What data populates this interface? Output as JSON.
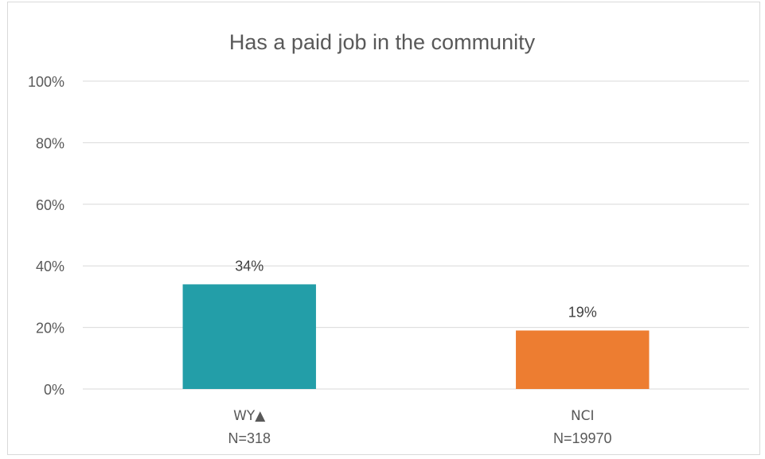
{
  "chart_data": {
    "type": "bar",
    "title": "Has a paid job in the community",
    "xlabel": "",
    "ylabel": "",
    "categories": [
      "WY▲",
      "NCI"
    ],
    "category_sublabels": [
      "N=318",
      "N=19970"
    ],
    "values": [
      0.34,
      0.19
    ],
    "data_labels": [
      "34%",
      "19%"
    ],
    "colors": [
      "#239ea8",
      "#ed7d31"
    ],
    "ylim": [
      0,
      1
    ],
    "yticks": [
      0,
      0.2,
      0.4,
      0.6,
      0.8,
      1.0
    ],
    "ytick_labels": [
      "0%",
      "20%",
      "40%",
      "60%",
      "80%",
      "100%"
    ],
    "grid": true,
    "legend": "none"
  }
}
